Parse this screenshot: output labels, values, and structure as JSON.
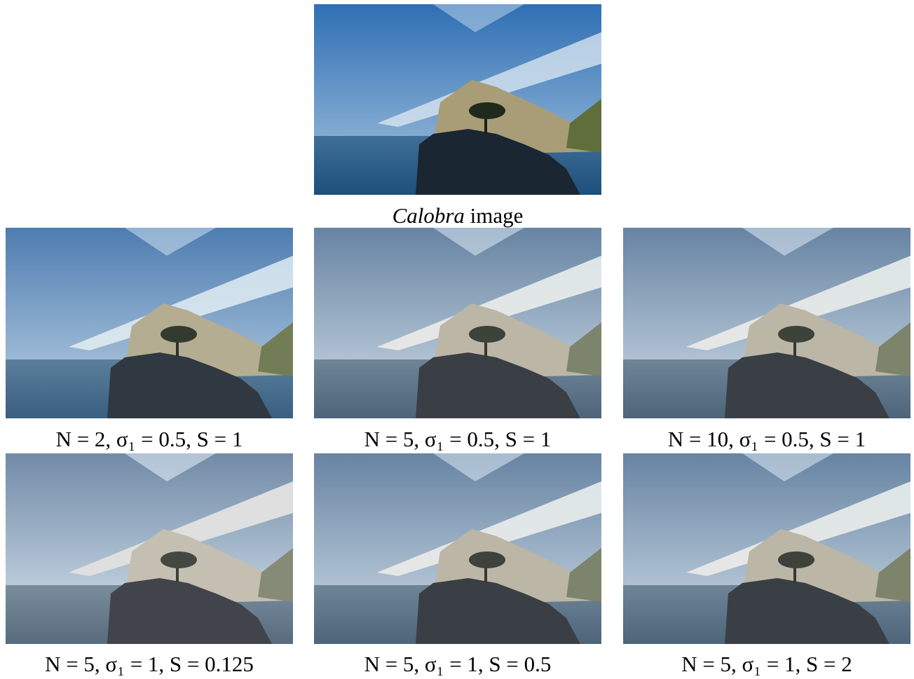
{
  "original": {
    "name": "Calobra",
    "suffix": "image"
  },
  "results": [
    "N = 2, σ₁ = 0.5, S = 1",
    "N = 5, σ₁ = 0.5, S = 1",
    "N = 10, σ₁ = 0.5, S = 1",
    "N = 5, σ₁ = 1, S = 0.125",
    "N = 5, σ₁ = 1, S = 0.5",
    "N = 5, σ₁ = 1, S = 2"
  ]
}
